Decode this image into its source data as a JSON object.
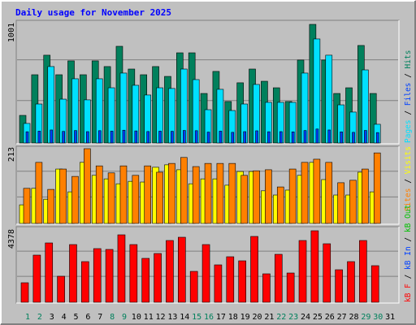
{
  "title": "Daily usage for November 2025",
  "categories": [
    "1",
    "2",
    "3",
    "4",
    "5",
    "6",
    "7",
    "8",
    "9",
    "10",
    "11",
    "12",
    "13",
    "14",
    "15",
    "16",
    "17",
    "18",
    "19",
    "20",
    "21",
    "22",
    "23",
    "24",
    "25",
    "26",
    "27",
    "28",
    "29",
    "30",
    "31"
  ],
  "category_colors": [
    "#00805C",
    "#00805C",
    "#000000",
    "#000000",
    "#000000",
    "#000000",
    "#000000",
    "#00805C",
    "#00805C",
    "#000000",
    "#000000",
    "#000000",
    "#000000",
    "#000000",
    "#00805C",
    "#00805C",
    "#000000",
    "#000000",
    "#000000",
    "#000000",
    "#000000",
    "#00805C",
    "#00805C",
    "#000000",
    "#000000",
    "#000000",
    "#000000",
    "#000000",
    "#00805C",
    "#00805C",
    "#000000"
  ],
  "legend_separator": " / ",
  "chart_data": [
    {
      "type": "bar",
      "ylim": [
        0,
        1001
      ],
      "yticks": [
        1001
      ],
      "series": [
        {
          "name": "Pages",
          "color": "#00E0FF",
          "values": [
            165,
            329,
            645,
            370,
            542,
            364,
            542,
            466,
            590,
            487,
            405,
            466,
            460,
            624,
            535,
            281,
            453,
            274,
            329,
            494,
            343,
            343,
            343,
            590,
            878,
            741,
            322,
            261,
            617,
            158,
            null
          ]
        },
        {
          "name": "Files",
          "color": "#0040FF",
          "values": [
            95,
            100,
            110,
            98,
            105,
            96,
            104,
            100,
            108,
            102,
            97,
            100,
            99,
            106,
            104,
            92,
            100,
            90,
            96,
            103,
            95,
            96,
            94,
            105,
            118,
            110,
            94,
            90,
            106,
            88,
            null
          ]
        },
        {
          "name": "Hits",
          "color": "#00805C",
          "values": [
            233,
            576,
            741,
            576,
            693,
            576,
            693,
            645,
            816,
            624,
            576,
            645,
            562,
            761,
            761,
            418,
            604,
            350,
            508,
            624,
            521,
            466,
            350,
            700,
            1001,
            700,
            418,
            466,
            823,
            418,
            null
          ]
        }
      ]
    },
    {
      "type": "bar",
      "ylim": [
        0,
        213
      ],
      "yticks": [
        213
      ],
      "series": [
        {
          "name": "Sites",
          "color": "#FF8000",
          "values": [
            100,
            174,
            97,
            155,
            134,
            213,
            164,
            144,
            164,
            137,
            164,
            146,
            171,
            188,
            162,
            171,
            171,
            171,
            137,
            150,
            153,
            104,
            155,
            174,
            183,
            174,
            116,
            123,
            155,
            201,
            null
          ]
        },
        {
          "name": "Visits",
          "color": "#FFFF00",
          "values": [
            53,
            100,
            69,
            155,
            90,
            174,
            137,
            127,
            113,
            120,
            118,
            160,
            167,
            153,
            113,
            127,
            127,
            109,
            148,
            148,
            93,
            81,
            95,
            137,
            174,
            125,
            81,
            81,
            146,
            90,
            null
          ]
        }
      ]
    },
    {
      "type": "bar",
      "ylim": [
        0,
        4378
      ],
      "yticks": [
        4378
      ],
      "series": [
        {
          "name": "kB F",
          "color": "#FF0000",
          "values": [
            1194,
            2886,
            3632,
            1592,
            3532,
            2488,
            3284,
            3234,
            4129,
            3532,
            2687,
            2985,
            3781,
            3980,
            1891,
            3532,
            2289,
            2786,
            2537,
            4030,
            1741,
            2935,
            1791,
            3781,
            4378,
            3582,
            1990,
            2488,
            3781,
            2239,
            null
          ]
        }
      ],
      "extra_legend": [
        {
          "name": "kB In",
          "color": "#0040FF"
        },
        {
          "name": "kB Out",
          "color": "#00C000"
        }
      ]
    }
  ]
}
